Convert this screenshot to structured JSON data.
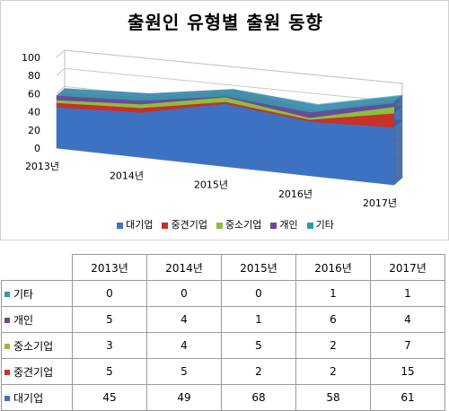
{
  "chart_data": {
    "type": "area",
    "title": "출원인 유형별 출원 동향",
    "categories": [
      "2013년",
      "2014년",
      "2015년",
      "2016년",
      "2017년"
    ],
    "y_ticks": [
      "100",
      "80",
      "60",
      "40",
      "20",
      "0"
    ],
    "ylim": [
      0,
      100
    ],
    "stacked": true,
    "grid": true,
    "legend_position": "bottom",
    "series": [
      {
        "name": "대기업",
        "color": "#3d72c2",
        "values": [
          45,
          49,
          68,
          58,
          61
        ]
      },
      {
        "name": "중견기업",
        "color": "#c8302a",
        "values": [
          5,
          5,
          2,
          2,
          15
        ]
      },
      {
        "name": "중소기업",
        "color": "#8fbe3f",
        "values": [
          3,
          4,
          5,
          2,
          7
        ]
      },
      {
        "name": "개인",
        "color": "#6c4a98",
        "values": [
          5,
          4,
          1,
          6,
          4
        ]
      },
      {
        "name": "기타",
        "color": "#2a9bb0",
        "values": [
          0,
          0,
          0,
          1,
          1
        ]
      }
    ]
  },
  "table": {
    "rows": [
      {
        "label": "기타",
        "color": "#2a9bb0",
        "values": [
          "0",
          "0",
          "0",
          "1",
          "1"
        ]
      },
      {
        "label": "개인",
        "color": "#6c4a98",
        "values": [
          "5",
          "4",
          "1",
          "6",
          "4"
        ]
      },
      {
        "label": "중소기업",
        "color": "#8fbe3f",
        "values": [
          "3",
          "4",
          "5",
          "2",
          "7"
        ]
      },
      {
        "label": "중견기업",
        "color": "#c8302a",
        "values": [
          "5",
          "5",
          "2",
          "2",
          "15"
        ]
      },
      {
        "label": "대기업",
        "color": "#3d72c2",
        "values": [
          "45",
          "49",
          "68",
          "58",
          "61"
        ]
      }
    ]
  }
}
